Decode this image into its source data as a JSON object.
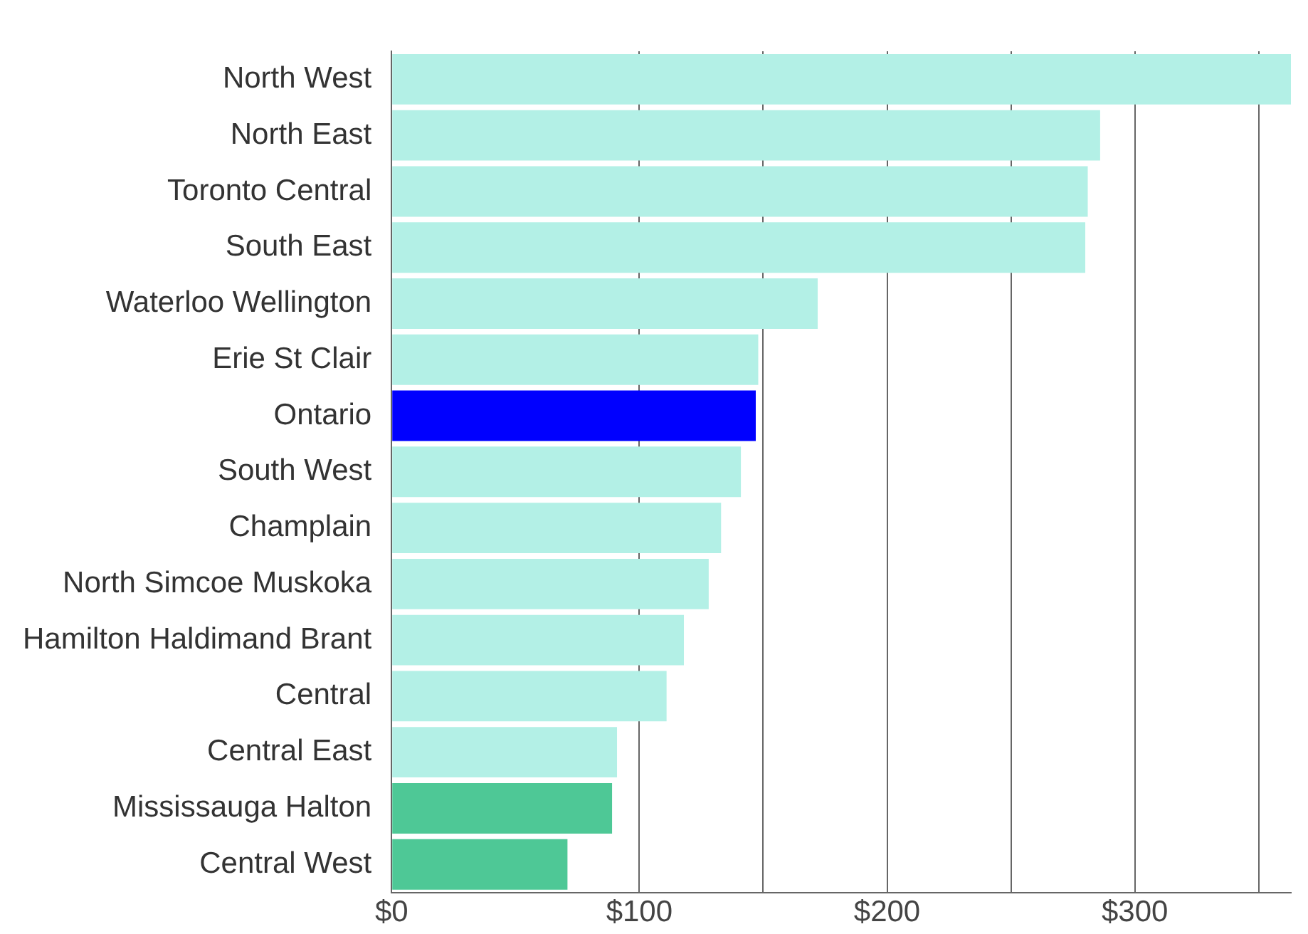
{
  "chart_data": {
    "type": "bar",
    "orientation": "horizontal",
    "categories": [
      "North West",
      "North East",
      "Toronto Central",
      "South East",
      "Waterloo Wellington",
      "Erie St Clair",
      "Ontario",
      "South West",
      "Champlain",
      "North Simcoe Muskoka",
      "Hamilton Haldimand Brant",
      "Central",
      "Central East",
      "Mississauga Halton",
      "Central West"
    ],
    "values": [
      363,
      286,
      281,
      280,
      172,
      148,
      147,
      141,
      133,
      128,
      118,
      111,
      91,
      89,
      71
    ],
    "colors": [
      "#b3f0e6",
      "#b3f0e6",
      "#b3f0e6",
      "#b3f0e6",
      "#b3f0e6",
      "#b3f0e6",
      "#0000ff",
      "#b3f0e6",
      "#b3f0e6",
      "#b3f0e6",
      "#b3f0e6",
      "#b3f0e6",
      "#b3f0e6",
      "#4ec896",
      "#4ec896"
    ],
    "xlim": [
      0,
      363
    ],
    "xticks": [
      {
        "value": 0,
        "label": "$0"
      },
      {
        "value": 100,
        "label": "$100"
      },
      {
        "value": 150,
        "label": null
      },
      {
        "value": 200,
        "label": "$200"
      },
      {
        "value": 250,
        "label": null
      },
      {
        "value": 300,
        "label": "$300"
      },
      {
        "value": 350,
        "label": null
      }
    ],
    "grid": "x"
  }
}
